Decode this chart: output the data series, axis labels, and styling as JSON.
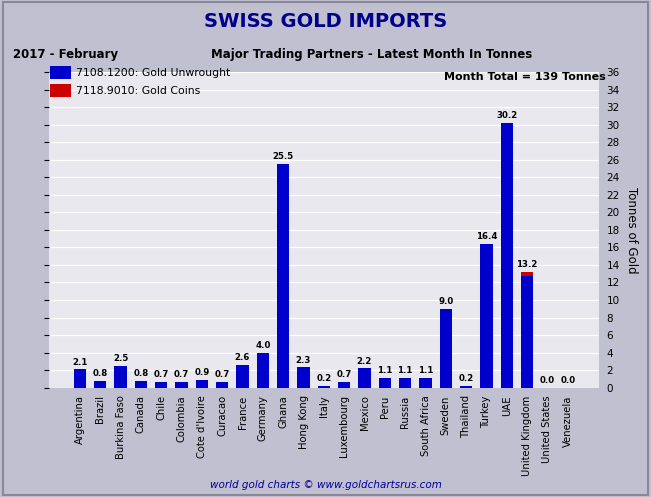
{
  "title": "SWISS GOLD IMPORTS",
  "subtitle_left": "2017 - February",
  "subtitle_right": "Major Trading Partners - Latest Month In Tonnes",
  "month_total": "Month Total = 139 Tonnes",
  "ylabel": "Tonnes of Gold",
  "footer": "world gold charts © www.goldchartsrus.com",
  "legend": [
    {
      "label": "7108.1200: Gold Unwrought",
      "color": "#0000CC"
    },
    {
      "label": "7118.9010: Gold Coins",
      "color": "#CC0000"
    }
  ],
  "categories": [
    "Argentina",
    "Brazil",
    "Burkina Faso",
    "Canada",
    "Chile",
    "Colombia",
    "Cote d'Ivoire",
    "Curacao",
    "France",
    "Germany",
    "Ghana",
    "Hong Kong",
    "Italy",
    "Luxembourg",
    "Mexico",
    "Peru",
    "Russia",
    "South Africa",
    "Sweden",
    "Thailand",
    "Turkey",
    "UAE",
    "United Kingdom",
    "United States",
    "Venezuela"
  ],
  "values_unwrought": [
    2.1,
    0.8,
    2.5,
    0.8,
    0.7,
    0.7,
    0.9,
    0.7,
    2.6,
    4.0,
    25.5,
    2.3,
    0.2,
    0.7,
    2.2,
    1.1,
    1.1,
    1.1,
    9.0,
    0.2,
    16.4,
    30.2,
    12.7,
    0.0,
    0.0
  ],
  "values_coins": [
    0.0,
    0.0,
    0.0,
    0.0,
    0.0,
    0.0,
    0.0,
    0.0,
    0.0,
    0.0,
    0.0,
    0.0,
    0.0,
    0.0,
    0.0,
    0.0,
    0.0,
    0.0,
    0.0,
    0.0,
    0.0,
    0.0,
    0.5,
    0.0,
    0.0
  ],
  "bar_color_unwrought": "#0000CC",
  "bar_color_coins": "#CC0000",
  "ylim": [
    0,
    36
  ],
  "yticks": [
    0,
    2,
    4,
    6,
    8,
    10,
    12,
    14,
    16,
    18,
    20,
    22,
    24,
    26,
    28,
    30,
    32,
    34,
    36
  ],
  "title_bg_color": "#9999CC",
  "title_text_color": "#00008B",
  "plot_bg_color": "#E8E8EE",
  "outer_bg_color": "#C0C0D0",
  "grid_color": "#FFFFFF",
  "inner_bg_color": "#FFFFFF"
}
